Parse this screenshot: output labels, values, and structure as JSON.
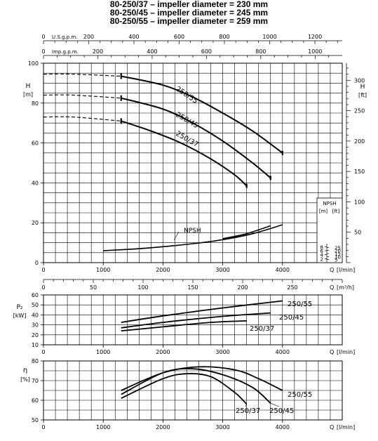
{
  "titles": [
    "80-250/37 – impeller diameter = 230 mm",
    "80-250/45 – impeller diameter = 245 mm",
    "80-250/55 – impeller diameter = 259 mm"
  ],
  "chart_data": [
    {
      "type": "line",
      "panel": "head",
      "ylabel": "H",
      "yunit": "[m]",
      "ylabel_right": "H",
      "yunit_right": "[ft]",
      "xlabel": "Q",
      "xunit": "[l/min]",
      "xlim": [
        0,
        5000
      ],
      "ylim": [
        0,
        100
      ],
      "x_ticks": [
        "0",
        "1000",
        "2000",
        "3000",
        "4000"
      ],
      "y_ticks": [
        "0",
        "20",
        "40",
        "60",
        "80",
        "100"
      ],
      "y_right_ticks": [
        "50",
        "100",
        "150",
        "200",
        "250",
        "300"
      ],
      "top_axis_usgpm_label": "U.S.g.p.m.",
      "top_axis_usgpm_ticks": [
        "0",
        "200",
        "400",
        "600",
        "800",
        "1000",
        "1200"
      ],
      "top_axis_impgpm_label": "Imp.g.p.m.",
      "top_axis_impgpm_ticks": [
        "0",
        "200",
        "400",
        "600",
        "800",
        "1000"
      ],
      "bottom_axis2_label": "Q",
      "bottom_axis2_unit": "[m³/h]",
      "bottom_axis2_ticks": [
        "0",
        "50",
        "100",
        "150",
        "200",
        "250"
      ],
      "grid": true,
      "series": [
        {
          "name": "250/55",
          "x": [
            0,
            500,
            1300,
            2000,
            2500,
            3000,
            3500,
            4000
          ],
          "y": [
            94.5,
            94.5,
            93.5,
            89,
            83,
            75,
            66,
            55
          ],
          "dashed_until": 1300
        },
        {
          "name": "250/45",
          "x": [
            0,
            500,
            1300,
            2000,
            2500,
            3000,
            3500,
            3800
          ],
          "y": [
            84,
            84,
            82.5,
            77,
            70,
            61,
            50,
            42.5
          ],
          "dashed_until": 1300
        },
        {
          "name": "250/37",
          "x": [
            0,
            500,
            1300,
            1800,
            2300,
            2800,
            3200,
            3400
          ],
          "y": [
            73,
            73,
            71,
            66,
            60,
            52,
            44,
            38.5
          ],
          "dashed_until": 1300
        }
      ],
      "npsh": {
        "label": "NPSH",
        "box_label": "NPSH",
        "box_unit_m": "[m]",
        "box_unit_ft": "[ft]",
        "m_ticks": [
          "2",
          "4",
          "6",
          "8"
        ],
        "ft_ticks": [
          "5",
          "10",
          "15",
          "20",
          "25"
        ],
        "series": [
          {
            "x": [
              1000,
              1500,
              2000,
              2500,
              3000,
              3500,
              4000
            ],
            "y": [
              6,
              6.8,
              8,
              9.5,
              11.5,
              14.5,
              19
            ]
          },
          {
            "x": [
              3000,
              3400,
              3800
            ],
            "y": [
              12,
              14.5,
              18.5
            ]
          }
        ]
      }
    },
    {
      "type": "line",
      "panel": "power",
      "ylabel": "P₂",
      "yunit": "[kW]",
      "xlabel": "Q",
      "xunit": "[l/min]",
      "xlim": [
        0,
        5000
      ],
      "ylim": [
        10,
        60
      ],
      "x_ticks": [
        "0",
        "1000",
        "2000",
        "3000",
        "4000"
      ],
      "y_ticks": [
        "10",
        "20",
        "30",
        "40",
        "50",
        "60"
      ],
      "grid": true,
      "series": [
        {
          "name": "250/55",
          "x": [
            1300,
            2000,
            3000,
            4000
          ],
          "y": [
            32.5,
            39,
            47,
            54
          ]
        },
        {
          "name": "250/45",
          "x": [
            1300,
            2000,
            3000,
            3800
          ],
          "y": [
            27,
            32.5,
            38.5,
            42
          ]
        },
        {
          "name": "250/37",
          "x": [
            1300,
            2000,
            2800,
            3400
          ],
          "y": [
            24,
            28,
            32.5,
            34
          ]
        }
      ]
    },
    {
      "type": "line",
      "panel": "efficiency",
      "ylabel": "η",
      "yunit": "[%]",
      "xlabel": "Q",
      "xunit": "[l/min]",
      "xlim": [
        0,
        5000
      ],
      "ylim": [
        50,
        80
      ],
      "x_ticks": [
        "0",
        "1000",
        "2000",
        "3000",
        "4000"
      ],
      "y_ticks": [
        "50",
        "60",
        "70",
        "80"
      ],
      "grid": true,
      "series": [
        {
          "name": "250/55",
          "x": [
            1300,
            2000,
            2600,
            3200,
            3600,
            4000
          ],
          "y": [
            65,
            74,
            77,
            75.5,
            71,
            65
          ]
        },
        {
          "name": "250/45",
          "x": [
            1300,
            2000,
            2500,
            3000,
            3500,
            3800
          ],
          "y": [
            63,
            74,
            76,
            73,
            66.5,
            58.5
          ]
        },
        {
          "name": "250/37",
          "x": [
            1300,
            2000,
            2400,
            2800,
            3200,
            3400
          ],
          "y": [
            61,
            71,
            73.5,
            72,
            64,
            58
          ]
        }
      ]
    }
  ]
}
